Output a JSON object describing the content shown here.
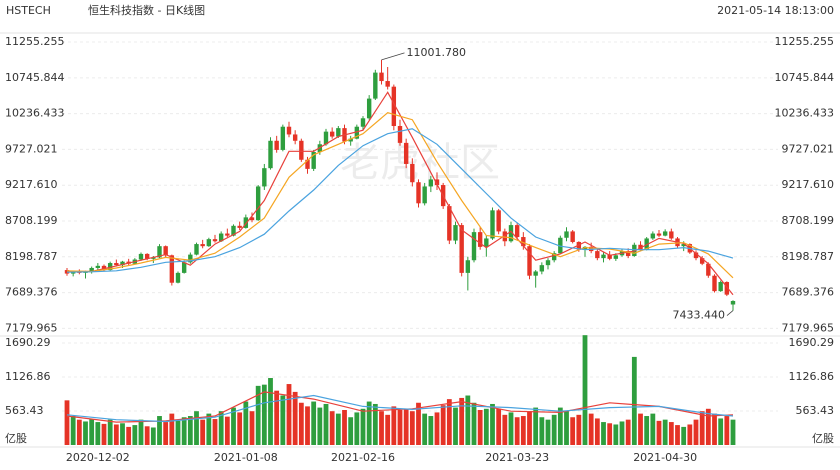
{
  "chart_data": {
    "type": "candlestick",
    "title": "HSTECH",
    "subtitle": "恒生科技指数 - 日K线图",
    "timestamp": "2021-05-14 18:13:00",
    "watermark": "老虎社区",
    "up_color": "#2e9e3e",
    "down_color": "#e53326",
    "grid": true,
    "categories": [
      null,
      null,
      null,
      null,
      null,
      "2020-12-02",
      null,
      null,
      null,
      null,
      null,
      null,
      null,
      null,
      null,
      null,
      null,
      null,
      null,
      null,
      null,
      null,
      null,
      null,
      null,
      null,
      null,
      null,
      null,
      "2021-01-08",
      null,
      null,
      null,
      null,
      null,
      null,
      null,
      null,
      null,
      null,
      null,
      null,
      null,
      null,
      null,
      null,
      null,
      null,
      "2021-02-16",
      null,
      null,
      null,
      null,
      null,
      null,
      null,
      null,
      null,
      null,
      null,
      null,
      null,
      null,
      null,
      null,
      null,
      null,
      null,
      null,
      null,
      null,
      null,
      null,
      "2021-03-23",
      null,
      null,
      null,
      null,
      null,
      null,
      null,
      null,
      null,
      null,
      null,
      null,
      null,
      null,
      null,
      null,
      null,
      null,
      null,
      null,
      null,
      null,
      null,
      "2021-04-30",
      null,
      null,
      null,
      null,
      null,
      null,
      null,
      null,
      null,
      null,
      null
    ],
    "ohlc": [
      [
        8010,
        8040,
        7930,
        7960
      ],
      [
        7960,
        8000,
        7920,
        7990
      ],
      [
        7990,
        8020,
        7950,
        7970
      ],
      [
        7970,
        8000,
        7890,
        7985
      ],
      [
        7985,
        8060,
        7960,
        8040
      ],
      [
        8040,
        8110,
        8000,
        8070
      ],
      [
        8070,
        8090,
        7990,
        8010
      ],
      [
        8010,
        8130,
        8000,
        8110
      ],
      [
        8110,
        8160,
        8060,
        8080
      ],
      [
        8080,
        8140,
        8040,
        8130
      ],
      [
        8130,
        8170,
        8080,
        8100
      ],
      [
        8100,
        8180,
        8090,
        8160
      ],
      [
        8160,
        8260,
        8140,
        8240
      ],
      [
        8240,
        8250,
        8150,
        8170
      ],
      [
        8170,
        8210,
        8110,
        8190
      ],
      [
        8190,
        8380,
        8180,
        8350
      ],
      [
        8350,
        8360,
        8190,
        8220
      ],
      [
        8220,
        8230,
        7790,
        7830
      ],
      [
        7830,
        7990,
        7820,
        7970
      ],
      [
        7970,
        8150,
        7960,
        8120
      ],
      [
        8120,
        8260,
        8100,
        8230
      ],
      [
        8230,
        8400,
        8220,
        8380
      ],
      [
        8380,
        8440,
        8320,
        8350
      ],
      [
        8350,
        8470,
        8340,
        8450
      ],
      [
        8450,
        8510,
        8400,
        8420
      ],
      [
        8420,
        8560,
        8410,
        8530
      ],
      [
        8530,
        8600,
        8480,
        8500
      ],
      [
        8500,
        8660,
        8490,
        8640
      ],
      [
        8640,
        8700,
        8580,
        8610
      ],
      [
        8610,
        8800,
        8600,
        8760
      ],
      [
        8760,
        8830,
        8690,
        8720
      ],
      [
        8720,
        9220,
        8710,
        9200
      ],
      [
        9200,
        9520,
        9150,
        9460
      ],
      [
        9460,
        9900,
        9440,
        9850
      ],
      [
        9850,
        9920,
        9680,
        9720
      ],
      [
        9720,
        10080,
        9700,
        10050
      ],
      [
        10050,
        10120,
        9900,
        9940
      ],
      [
        9940,
        10000,
        9800,
        9850
      ],
      [
        9850,
        9880,
        9550,
        9580
      ],
      [
        9580,
        9620,
        9380,
        9450
      ],
      [
        9450,
        9720,
        9420,
        9690
      ],
      [
        9690,
        9850,
        9650,
        9800
      ],
      [
        9800,
        10020,
        9780,
        9980
      ],
      [
        9980,
        10040,
        9880,
        9910
      ],
      [
        9910,
        10060,
        9890,
        10030
      ],
      [
        10030,
        10080,
        9800,
        9840
      ],
      [
        9840,
        9920,
        9780,
        9880
      ],
      [
        9880,
        10080,
        9870,
        10050
      ],
      [
        10050,
        10200,
        10000,
        10170
      ],
      [
        10170,
        10500,
        10150,
        10450
      ],
      [
        10450,
        10860,
        10430,
        10820
      ],
      [
        10820,
        11001.78,
        10650,
        10700
      ],
      [
        10700,
        10900,
        10580,
        10620
      ],
      [
        10620,
        10650,
        10000,
        10060
      ],
      [
        10060,
        10150,
        9780,
        9820
      ],
      [
        9820,
        9880,
        9460,
        9520
      ],
      [
        9520,
        9600,
        9200,
        9260
      ],
      [
        9260,
        9300,
        8900,
        8960
      ],
      [
        8960,
        9250,
        8930,
        9200
      ],
      [
        9200,
        9350,
        9120,
        9300
      ],
      [
        9300,
        9400,
        9150,
        9220
      ],
      [
        9220,
        9250,
        8880,
        8920
      ],
      [
        8920,
        8950,
        8380,
        8430
      ],
      [
        8430,
        8700,
        8380,
        8650
      ],
      [
        8650,
        8680,
        7920,
        7970
      ],
      [
        7970,
        8200,
        7720,
        8150
      ],
      [
        8150,
        8600,
        8120,
        8550
      ],
      [
        8550,
        8620,
        8300,
        8340
      ],
      [
        8340,
        8500,
        8200,
        8460
      ],
      [
        8460,
        8900,
        8440,
        8860
      ],
      [
        8860,
        8880,
        8520,
        8560
      ],
      [
        8560,
        8600,
        8350,
        8420
      ],
      [
        8420,
        8700,
        8400,
        8650
      ],
      [
        8650,
        8680,
        8450,
        8480
      ],
      [
        8480,
        8550,
        8300,
        8350
      ],
      [
        8350,
        8380,
        7880,
        7930
      ],
      [
        7930,
        8010,
        7760,
        7990
      ],
      [
        7990,
        8120,
        7950,
        8080
      ],
      [
        8080,
        8180,
        8020,
        8150
      ],
      [
        8150,
        8280,
        8120,
        8250
      ],
      [
        8250,
        8500,
        8240,
        8470
      ],
      [
        8470,
        8620,
        8420,
        8560
      ],
      [
        8560,
        8580,
        8390,
        8410
      ],
      [
        8410,
        8420,
        8270,
        8300
      ],
      [
        8300,
        8350,
        8200,
        8340
      ],
      [
        8340,
        8400,
        8250,
        8280
      ],
      [
        8280,
        8320,
        8150,
        8180
      ],
      [
        8180,
        8260,
        8120,
        8230
      ],
      [
        8230,
        8280,
        8150,
        8170
      ],
      [
        8170,
        8250,
        8140,
        8220
      ],
      [
        8220,
        8310,
        8200,
        8280
      ],
      [
        8280,
        8320,
        8180,
        8210
      ],
      [
        8210,
        8400,
        8200,
        8370
      ],
      [
        8370,
        8420,
        8280,
        8300
      ],
      [
        8300,
        8480,
        8290,
        8460
      ],
      [
        8460,
        8560,
        8440,
        8530
      ],
      [
        8530,
        8580,
        8480,
        8500
      ],
      [
        8500,
        8590,
        8490,
        8560
      ],
      [
        8560,
        8600,
        8440,
        8460
      ],
      [
        8460,
        8480,
        8330,
        8350
      ],
      [
        8350,
        8420,
        8280,
        8380
      ],
      [
        8380,
        8390,
        8240,
        8260
      ],
      [
        8260,
        8290,
        8150,
        8180
      ],
      [
        8180,
        8210,
        8080,
        8100
      ],
      [
        8100,
        8120,
        7900,
        7930
      ],
      [
        7930,
        7950,
        7690,
        7710
      ],
      [
        7710,
        7860,
        7700,
        7840
      ],
      [
        7840,
        7850,
        7640,
        7660
      ],
      [
        7520,
        7580,
        7433.44,
        7570
      ]
    ],
    "volume": [
      740,
      480,
      420,
      390,
      430,
      380,
      350,
      420,
      340,
      360,
      300,
      330,
      420,
      310,
      290,
      480,
      380,
      520,
      400,
      460,
      480,
      560,
      420,
      520,
      430,
      560,
      470,
      620,
      540,
      720,
      560,
      980,
      1000,
      1110,
      900,
      820,
      1010,
      880,
      700,
      640,
      720,
      620,
      680,
      560,
      520,
      580,
      460,
      540,
      600,
      720,
      680,
      560,
      500,
      640,
      580,
      600,
      560,
      700,
      520,
      480,
      540,
      660,
      760,
      620,
      780,
      820,
      700,
      580,
      600,
      680,
      600,
      500,
      540,
      460,
      480,
      560,
      620,
      460,
      420,
      500,
      620,
      560,
      460,
      500,
      1820,
      520,
      440,
      380,
      360,
      340,
      390,
      420,
      1460,
      520,
      480,
      520,
      400,
      420,
      380,
      330,
      300,
      340,
      420,
      560,
      600,
      520,
      440,
      480,
      420
    ],
    "ylim": [
      7086,
      11341
    ],
    "yticks": [
      11255.255,
      10745.844,
      10236.433,
      9727.021,
      {
        "value": 9217.61,
        "label": "9217.610"
      },
      8708.199,
      8198.787,
      7689.376,
      7179.965
    ],
    "volume_ylim": [
      0,
      1856
    ],
    "volume_yticks": [
      1690.29,
      1126.86,
      563.43
    ],
    "volume_unit": "亿股",
    "series": [
      {
        "color": "#e8413b",
        "x": [
          0,
          4,
          8,
          12,
          16,
          20,
          24,
          28,
          32,
          36,
          40,
          44,
          48,
          52,
          56,
          60,
          64,
          68,
          72,
          76,
          80,
          84,
          88,
          92,
          96,
          100,
          104,
          108
        ],
        "values": [
          7990,
          7990,
          8070,
          8150,
          8230,
          8080,
          8380,
          8560,
          9000,
          9700,
          9700,
          9910,
          10000,
          10540,
          9900,
          9230,
          8580,
          8330,
          8560,
          8150,
          8240,
          8410,
          8220,
          8280,
          8460,
          8390,
          8100,
          7660
        ]
      },
      {
        "color": "#f5a623",
        "x": [
          0,
          4,
          8,
          12,
          16,
          20,
          24,
          28,
          32,
          36,
          40,
          44,
          48,
          52,
          56,
          60,
          64,
          68,
          72,
          76,
          80,
          84,
          88,
          92,
          96,
          100,
          104,
          108
        ],
        "values": [
          8000,
          7990,
          8040,
          8110,
          8190,
          8150,
          8250,
          8480,
          8750,
          9330,
          9650,
          9800,
          9950,
          10250,
          10150,
          9550,
          9000,
          8500,
          8470,
          8330,
          8200,
          8330,
          8310,
          8250,
          8380,
          8400,
          8240,
          7900
        ]
      },
      {
        "color": "#4aa3df",
        "x": [
          0,
          4,
          8,
          12,
          16,
          20,
          24,
          28,
          32,
          36,
          40,
          44,
          48,
          52,
          56,
          60,
          64,
          68,
          72,
          76,
          80,
          84,
          88,
          92,
          96,
          100,
          104,
          108
        ],
        "values": [
          7980,
          7985,
          8000,
          8050,
          8120,
          8140,
          8200,
          8330,
          8520,
          8850,
          9150,
          9500,
          9780,
          9950,
          10020,
          9800,
          9450,
          9100,
          8750,
          8480,
          8350,
          8300,
          8320,
          8300,
          8300,
          8330,
          8280,
          8180
        ]
      }
    ],
    "volume_series": [
      {
        "color": "#e8413b",
        "x": [
          0,
          8,
          16,
          24,
          32,
          40,
          48,
          56,
          64,
          72,
          80,
          88,
          96,
          104,
          108
        ],
        "values": [
          480,
          380,
          400,
          480,
          880,
          760,
          560,
          600,
          720,
          560,
          540,
          700,
          640,
          480,
          500
        ]
      },
      {
        "color": "#4aa3df",
        "x": [
          0,
          8,
          16,
          24,
          32,
          40,
          48,
          56,
          64,
          72,
          80,
          88,
          96,
          104,
          108
        ],
        "values": [
          500,
          420,
          390,
          460,
          700,
          820,
          640,
          590,
          650,
          620,
          560,
          620,
          640,
          520,
          480
        ]
      }
    ],
    "annotations": [
      {
        "index": 51,
        "value": 11001.78,
        "label": "11001.780"
      },
      {
        "index": 108,
        "value": 7433.44,
        "label": "7433.440"
      }
    ]
  }
}
